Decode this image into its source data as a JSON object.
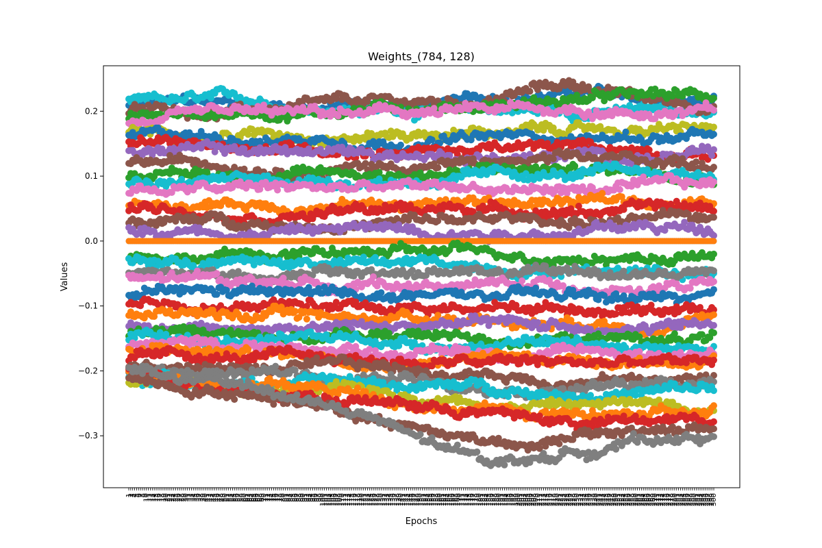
{
  "chart_data": {
    "type": "line",
    "title": "Weights_(784, 128)",
    "xlabel": "Epochs",
    "ylabel": "Values",
    "xlim": [
      1,
      300
    ],
    "ylim": [
      -0.38,
      0.27
    ],
    "yticks": [
      -0.3,
      -0.2,
      -0.1,
      0.0,
      0.1,
      0.2
    ],
    "ytick_labels": [
      "−0.3",
      "−0.2",
      "−0.1",
      "0.0",
      "0.1",
      "0.2"
    ],
    "x_tick_count": 300,
    "markers": true,
    "grid": false,
    "legend": "none",
    "palette": [
      "#1f77b4",
      "#ff7f0e",
      "#2ca02c",
      "#d62728",
      "#9467bd",
      "#8c564b",
      "#e377c2",
      "#7f7f7f",
      "#bcbd22",
      "#17becf"
    ],
    "series": [
      {
        "start": 0.21,
        "end": 0.21,
        "color": "#1f77b4",
        "peak": 0.23
      },
      {
        "start": 0.215,
        "end": 0.2,
        "color": "#17becf"
      },
      {
        "start": 0.2,
        "end": 0.21,
        "color": "#8c564b",
        "peak": 0.24
      },
      {
        "start": 0.19,
        "end": 0.22,
        "color": "#2ca02c"
      },
      {
        "start": 0.18,
        "end": 0.2,
        "color": "#e377c2"
      },
      {
        "start": 0.17,
        "end": 0.17,
        "color": "#bcbd22"
      },
      {
        "start": 0.16,
        "end": 0.16,
        "color": "#1f77b4"
      },
      {
        "start": 0.15,
        "end": 0.14,
        "color": "#d62728"
      },
      {
        "start": 0.14,
        "end": 0.13,
        "color": "#9467bd"
      },
      {
        "start": 0.12,
        "end": 0.12,
        "color": "#8c564b"
      },
      {
        "start": 0.1,
        "end": 0.11,
        "color": "#2ca02c"
      },
      {
        "start": 0.09,
        "end": 0.1,
        "color": "#17becf"
      },
      {
        "start": 0.08,
        "end": 0.08,
        "color": "#e377c2"
      },
      {
        "start": 0.06,
        "end": 0.06,
        "color": "#ff7f0e"
      },
      {
        "start": 0.05,
        "end": 0.05,
        "color": "#d62728"
      },
      {
        "start": 0.03,
        "end": 0.03,
        "color": "#8c564b"
      },
      {
        "start": 0.02,
        "end": 0.02,
        "color": "#9467bd"
      },
      {
        "start": 0.0,
        "end": 0.0,
        "color": "#7f7f7f"
      },
      {
        "start": 0.0,
        "end": 0.0,
        "color": "#ff7f0e"
      },
      {
        "start": -0.02,
        "end": -0.02,
        "color": "#2ca02c"
      },
      {
        "start": -0.03,
        "end": -0.04,
        "color": "#17becf"
      },
      {
        "start": -0.05,
        "end": -0.05,
        "color": "#7f7f7f"
      },
      {
        "start": -0.06,
        "end": -0.07,
        "color": "#e377c2"
      },
      {
        "start": -0.08,
        "end": -0.09,
        "color": "#1f77b4"
      },
      {
        "start": -0.1,
        "end": -0.1,
        "color": "#d62728"
      },
      {
        "start": -0.11,
        "end": -0.12,
        "color": "#ff7f0e"
      },
      {
        "start": -0.13,
        "end": -0.13,
        "color": "#9467bd"
      },
      {
        "start": -0.14,
        "end": -0.15,
        "color": "#2ca02c"
      },
      {
        "start": -0.15,
        "end": -0.16,
        "color": "#17becf"
      },
      {
        "start": -0.16,
        "end": -0.17,
        "color": "#e377c2"
      },
      {
        "start": -0.17,
        "end": -0.18,
        "color": "#ff7f0e"
      },
      {
        "start": -0.18,
        "end": -0.19,
        "color": "#d62728"
      },
      {
        "start": -0.19,
        "end": -0.21,
        "color": "#8c564b"
      },
      {
        "start": -0.2,
        "end": -0.22,
        "color": "#7f7f7f"
      },
      {
        "start": -0.21,
        "end": -0.23,
        "color": "#17becf"
      },
      {
        "start": -0.22,
        "end": -0.25,
        "color": "#bcbd22"
      },
      {
        "start": -0.2,
        "end": -0.27,
        "color": "#ff7f0e"
      },
      {
        "start": -0.2,
        "end": -0.28,
        "color": "#d62728"
      },
      {
        "start": -0.21,
        "end": -0.29,
        "color": "#8c564b",
        "trough": -0.32
      },
      {
        "start": -0.2,
        "end": -0.3,
        "color": "#7f7f7f",
        "trough": -0.36
      }
    ]
  }
}
